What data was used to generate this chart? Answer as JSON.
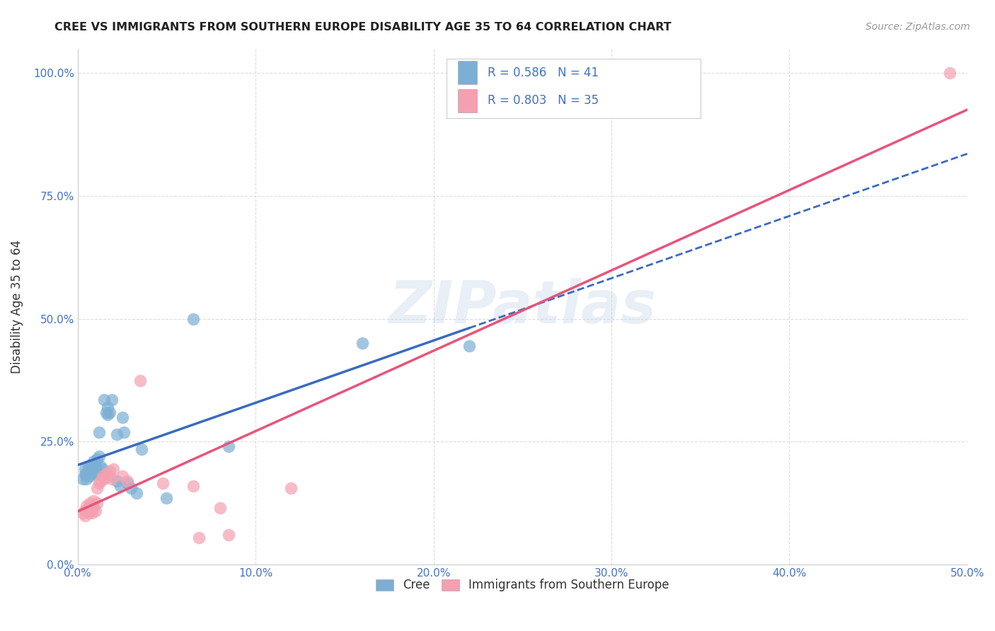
{
  "title": "CREE VS IMMIGRANTS FROM SOUTHERN EUROPE DISABILITY AGE 35 TO 64 CORRELATION CHART",
  "source": "Source: ZipAtlas.com",
  "ylabel": "Disability Age 35 to 64",
  "xmin": 0.0,
  "xmax": 0.5,
  "ymin": 0.0,
  "ymax": 1.05,
  "xticks": [
    0.0,
    0.1,
    0.2,
    0.3,
    0.4,
    0.5
  ],
  "xtick_labels": [
    "0.0%",
    "10.0%",
    "20.0%",
    "30.0%",
    "40.0%",
    "50.0%"
  ],
  "yticks": [
    0.0,
    0.25,
    0.5,
    0.75,
    1.0
  ],
  "ytick_labels": [
    "0.0%",
    "25.0%",
    "50.0%",
    "75.0%",
    "100.0%"
  ],
  "cree_color": "#7bafd4",
  "immigrant_color": "#f4a0b0",
  "cree_line_color": "#3a6bbf",
  "immigrant_line_color": "#e8547a",
  "R_cree": 0.586,
  "N_cree": 41,
  "R_immigrant": 0.803,
  "N_immigrant": 35,
  "watermark": "ZIPatlas",
  "cree_points": [
    [
      0.003,
      0.175
    ],
    [
      0.004,
      0.185
    ],
    [
      0.004,
      0.195
    ],
    [
      0.005,
      0.175
    ],
    [
      0.005,
      0.185
    ],
    [
      0.006,
      0.19
    ],
    [
      0.006,
      0.2
    ],
    [
      0.007,
      0.18
    ],
    [
      0.007,
      0.195
    ],
    [
      0.008,
      0.185
    ],
    [
      0.008,
      0.2
    ],
    [
      0.009,
      0.21
    ],
    [
      0.009,
      0.19
    ],
    [
      0.01,
      0.205
    ],
    [
      0.01,
      0.195
    ],
    [
      0.011,
      0.215
    ],
    [
      0.011,
      0.185
    ],
    [
      0.012,
      0.22
    ],
    [
      0.012,
      0.27
    ],
    [
      0.013,
      0.2
    ],
    [
      0.014,
      0.195
    ],
    [
      0.015,
      0.335
    ],
    [
      0.016,
      0.31
    ],
    [
      0.017,
      0.305
    ],
    [
      0.017,
      0.32
    ],
    [
      0.018,
      0.31
    ],
    [
      0.019,
      0.335
    ],
    [
      0.022,
      0.265
    ],
    [
      0.022,
      0.17
    ],
    [
      0.024,
      0.16
    ],
    [
      0.025,
      0.3
    ],
    [
      0.026,
      0.27
    ],
    [
      0.028,
      0.165
    ],
    [
      0.03,
      0.155
    ],
    [
      0.033,
      0.145
    ],
    [
      0.036,
      0.235
    ],
    [
      0.05,
      0.135
    ],
    [
      0.065,
      0.5
    ],
    [
      0.085,
      0.24
    ],
    [
      0.16,
      0.45
    ],
    [
      0.22,
      0.445
    ]
  ],
  "immigrant_points": [
    [
      0.003,
      0.105
    ],
    [
      0.004,
      0.11
    ],
    [
      0.004,
      0.1
    ],
    [
      0.005,
      0.12
    ],
    [
      0.005,
      0.11
    ],
    [
      0.006,
      0.105
    ],
    [
      0.006,
      0.115
    ],
    [
      0.007,
      0.125
    ],
    [
      0.007,
      0.11
    ],
    [
      0.008,
      0.12
    ],
    [
      0.008,
      0.105
    ],
    [
      0.009,
      0.13
    ],
    [
      0.009,
      0.115
    ],
    [
      0.01,
      0.11
    ],
    [
      0.011,
      0.125
    ],
    [
      0.011,
      0.155
    ],
    [
      0.012,
      0.165
    ],
    [
      0.013,
      0.17
    ],
    [
      0.014,
      0.18
    ],
    [
      0.015,
      0.175
    ],
    [
      0.016,
      0.185
    ],
    [
      0.017,
      0.18
    ],
    [
      0.018,
      0.19
    ],
    [
      0.019,
      0.175
    ],
    [
      0.02,
      0.195
    ],
    [
      0.025,
      0.18
    ],
    [
      0.028,
      0.17
    ],
    [
      0.035,
      0.375
    ],
    [
      0.048,
      0.165
    ],
    [
      0.065,
      0.16
    ],
    [
      0.068,
      0.055
    ],
    [
      0.08,
      0.115
    ],
    [
      0.085,
      0.06
    ],
    [
      0.12,
      0.155
    ],
    [
      0.49,
      1.0
    ]
  ]
}
